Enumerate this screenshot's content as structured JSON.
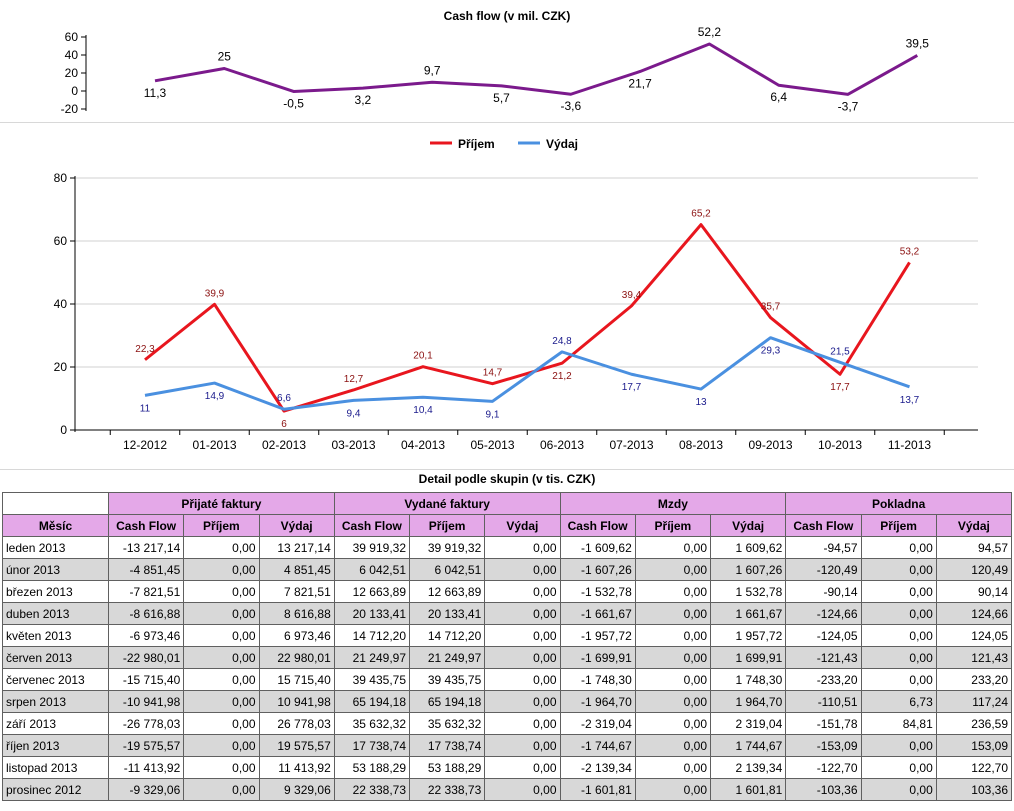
{
  "chart_data": [
    {
      "type": "line",
      "title": "Cash flow (v mil. CZK)",
      "categories": [
        "12-2012",
        "01-2013",
        "02-2013",
        "03-2013",
        "04-2013",
        "05-2013",
        "06-2013",
        "07-2013",
        "08-2013",
        "09-2013",
        "10-2013",
        "11-2013"
      ],
      "series": [
        {
          "values": [
            11.3,
            25,
            -0.5,
            3.2,
            9.7,
            5.7,
            -3.6,
            21.7,
            52.2,
            6.4,
            -3.7,
            39.5
          ],
          "labels": [
            "11,3",
            "25",
            "-0,5",
            "3,2",
            "9,7",
            "5,7",
            "-3,6",
            "21,7",
            "52,2",
            "6,4",
            "-3,7",
            "39,5"
          ],
          "color": "#7b1a8c"
        }
      ],
      "ylim": [
        -20,
        60
      ],
      "yticks": [
        60,
        40,
        20,
        0,
        -20
      ],
      "ytick_labels": [
        "60",
        "40",
        "20",
        "0",
        "-20"
      ],
      "grid": false
    },
    {
      "type": "line",
      "title": "",
      "categories": [
        "12-2012",
        "01-2013",
        "02-2013",
        "03-2013",
        "04-2013",
        "05-2013",
        "06-2013",
        "07-2013",
        "08-2013",
        "09-2013",
        "10-2013",
        "11-2013"
      ],
      "series": [
        {
          "name": "Příjem",
          "color": "#e8161e",
          "values": [
            22.3,
            39.9,
            6,
            12.7,
            20.1,
            14.7,
            21.2,
            39.4,
            65.2,
            35.7,
            17.7,
            53.2
          ],
          "labels": [
            "22,3",
            "39,9",
            "6",
            "12,7",
            "20,1",
            "14,7",
            "21,2",
            "39,4",
            "65,2",
            "35,7",
            "17,7",
            "53,2"
          ]
        },
        {
          "name": "Výdaj",
          "color": "#4a90e0",
          "values": [
            11,
            14.9,
            6.6,
            9.4,
            10.4,
            9.1,
            24.8,
            17.7,
            13,
            29.3,
            21.5,
            13.7
          ],
          "labels": [
            "11",
            "14,9",
            "6,6",
            "9,4",
            "10,4",
            "9,1",
            "24,8",
            "17,7",
            "13",
            "29,3",
            "21,5",
            "13,7"
          ]
        }
      ],
      "ylim": [
        0,
        80
      ],
      "yticks": [
        80,
        60,
        40,
        20,
        0
      ],
      "ytick_labels": [
        "80",
        "60",
        "40",
        "20",
        "0"
      ],
      "legend": "top-center",
      "grid": true
    }
  ],
  "table": {
    "title": "Detail podle skupin (v tis. CZK)",
    "groups": [
      "Přijaté faktury",
      "Vydané faktury",
      "Mzdy",
      "Pokladna"
    ],
    "month_header": "Měsíc",
    "sub_headers": [
      "Cash Flow",
      "Příjem",
      "Výdaj"
    ],
    "rows": [
      [
        "leden 2013",
        "-13 217,14",
        "0,00",
        "13 217,14",
        "39 919,32",
        "39 919,32",
        "0,00",
        "-1 609,62",
        "0,00",
        "1 609,62",
        "-94,57",
        "0,00",
        "94,57"
      ],
      [
        "únor 2013",
        "-4 851,45",
        "0,00",
        "4 851,45",
        "6 042,51",
        "6 042,51",
        "0,00",
        "-1 607,26",
        "0,00",
        "1 607,26",
        "-120,49",
        "0,00",
        "120,49"
      ],
      [
        "březen 2013",
        "-7 821,51",
        "0,00",
        "7 821,51",
        "12 663,89",
        "12 663,89",
        "0,00",
        "-1 532,78",
        "0,00",
        "1 532,78",
        "-90,14",
        "0,00",
        "90,14"
      ],
      [
        "duben 2013",
        "-8 616,88",
        "0,00",
        "8 616,88",
        "20 133,41",
        "20 133,41",
        "0,00",
        "-1 661,67",
        "0,00",
        "1 661,67",
        "-124,66",
        "0,00",
        "124,66"
      ],
      [
        "květen 2013",
        "-6 973,46",
        "0,00",
        "6 973,46",
        "14 712,20",
        "14 712,20",
        "0,00",
        "-1 957,72",
        "0,00",
        "1 957,72",
        "-124,05",
        "0,00",
        "124,05"
      ],
      [
        "červen 2013",
        "-22 980,01",
        "0,00",
        "22 980,01",
        "21 249,97",
        "21 249,97",
        "0,00",
        "-1 699,91",
        "0,00",
        "1 699,91",
        "-121,43",
        "0,00",
        "121,43"
      ],
      [
        "červenec 2013",
        "-15 715,40",
        "0,00",
        "15 715,40",
        "39 435,75",
        "39 435,75",
        "0,00",
        "-1 748,30",
        "0,00",
        "1 748,30",
        "-233,20",
        "0,00",
        "233,20"
      ],
      [
        "srpen 2013",
        "-10 941,98",
        "0,00",
        "10 941,98",
        "65 194,18",
        "65 194,18",
        "0,00",
        "-1 964,70",
        "0,00",
        "1 964,70",
        "-110,51",
        "6,73",
        "117,24"
      ],
      [
        "září 2013",
        "-26 778,03",
        "0,00",
        "26 778,03",
        "35 632,32",
        "35 632,32",
        "0,00",
        "-2 319,04",
        "0,00",
        "2 319,04",
        "-151,78",
        "84,81",
        "236,59"
      ],
      [
        "říjen 2013",
        "-19 575,57",
        "0,00",
        "19 575,57",
        "17 738,74",
        "17 738,74",
        "0,00",
        "-1 744,67",
        "0,00",
        "1 744,67",
        "-153,09",
        "0,00",
        "153,09"
      ],
      [
        "listopad 2013",
        "-11 413,92",
        "0,00",
        "11 413,92",
        "53 188,29",
        "53 188,29",
        "0,00",
        "-2 139,34",
        "0,00",
        "2 139,34",
        "-122,70",
        "0,00",
        "122,70"
      ],
      [
        "prosinec 2012",
        "-9 329,06",
        "0,00",
        "9 329,06",
        "22 338,73",
        "22 338,73",
        "0,00",
        "-1 601,81",
        "0,00",
        "1 601,81",
        "-103,36",
        "0,00",
        "103,36"
      ]
    ]
  }
}
